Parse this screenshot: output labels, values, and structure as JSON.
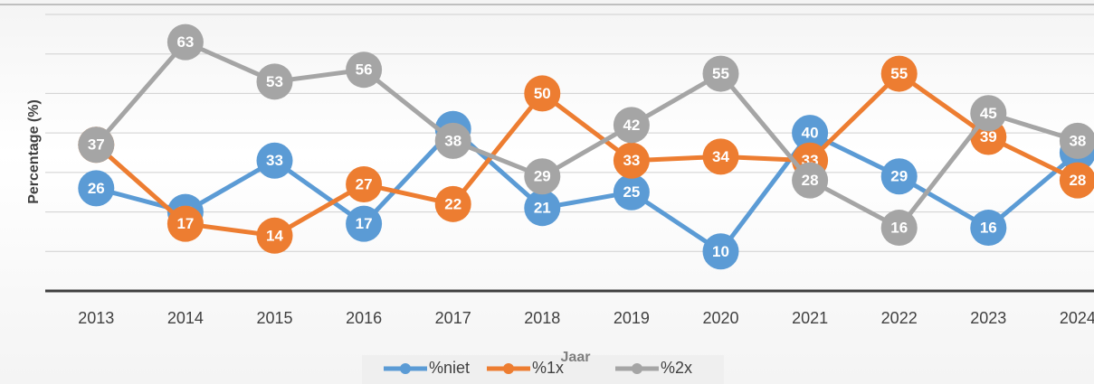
{
  "chart_data": {
    "type": "line",
    "x_label": "Jaar",
    "y_label": "Percentage (%)",
    "categories": [
      "2013",
      "2014",
      "2015",
      "2016",
      "2017",
      "2018",
      "2019",
      "2020",
      "2021",
      "2022",
      "2023",
      "2024"
    ],
    "series": [
      {
        "name": "%niet",
        "color": "#5b9bd5",
        "values": [
          26,
          20,
          33,
          17,
          41,
          21,
          25,
          10,
          40,
          29,
          16,
          35
        ]
      },
      {
        "name": "%1x",
        "color": "#ed7d31",
        "values": [
          37,
          17,
          14,
          27,
          22,
          50,
          33,
          34,
          33,
          55,
          39,
          28
        ]
      },
      {
        "name": "%2x",
        "color": "#a5a5a5",
        "values": [
          37,
          63,
          53,
          56,
          38,
          29,
          42,
          55,
          28,
          16,
          45,
          38
        ]
      }
    ],
    "ylim": [
      0,
      70
    ],
    "yticks": [
      0,
      10,
      20,
      30,
      40,
      50,
      60,
      70
    ],
    "show_ytick_labels": false,
    "grid": true,
    "legend": "bottom"
  }
}
